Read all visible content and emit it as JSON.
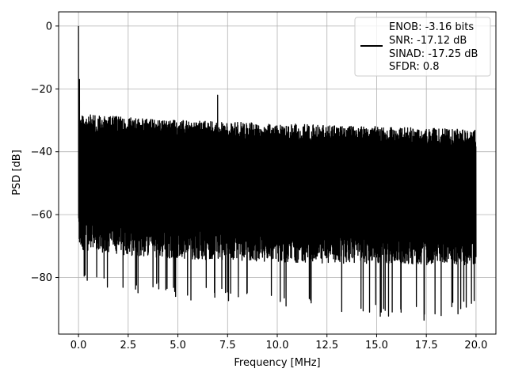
{
  "chart_data": {
    "type": "line",
    "title": "",
    "xlabel": "Frequency [MHz]",
    "ylabel": "PSD [dB]",
    "xlim": [
      -1.0,
      21.0
    ],
    "ylim": [
      -98.0,
      4.5
    ],
    "xticks": [
      0.0,
      2.5,
      5.0,
      7.5,
      10.0,
      12.5,
      15.0,
      17.5,
      20.0
    ],
    "xtick_labels": [
      "0.0",
      "2.5",
      "5.0",
      "7.5",
      "10.0",
      "12.5",
      "15.0",
      "17.5",
      "20.0"
    ],
    "yticks": [
      0,
      -20,
      -40,
      -60,
      -80
    ],
    "ytick_labels": [
      "0",
      "−20",
      "−40",
      "−60",
      "−80"
    ],
    "grid": true,
    "legend_position": "top-right",
    "series": [
      {
        "color": "#000000",
        "x_range": [
          0.0,
          20.0
        ],
        "peaks": [
          {
            "x": 0.0,
            "y": 0.0
          },
          {
            "x": 0.05,
            "y": -17.0
          },
          {
            "x": 7.0,
            "y": -22.0
          }
        ],
        "envelope": {
          "x": [
            0.0,
            2.5,
            5.0,
            7.5,
            10.0,
            12.5,
            15.0,
            17.5,
            20.0
          ],
          "top": [
            -28,
            -29,
            -30,
            -30.5,
            -31,
            -31.5,
            -32,
            -32.5,
            -33
          ],
          "bottom_typical": [
            -68,
            -70,
            -71,
            -71.5,
            -72,
            -72.5,
            -72.5,
            -73,
            -73
          ],
          "bottom_deep": [
            -80,
            -83,
            -85,
            -86,
            -88,
            -90,
            -91,
            -92,
            -90
          ]
        }
      }
    ],
    "legend": {
      "lines": [
        "ENOB: -3.16 bits",
        "SNR: -17.12 dB",
        "SINAD: -17.25 dB",
        "SFDR: 0.8"
      ]
    }
  }
}
